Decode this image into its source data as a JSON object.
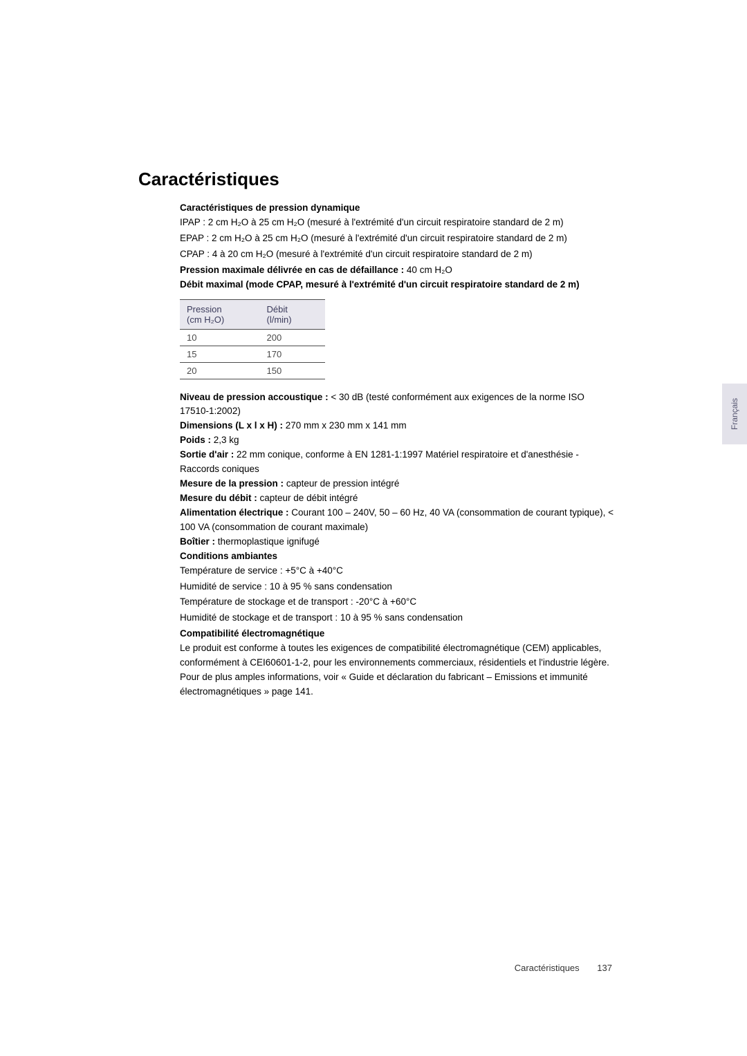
{
  "page": {
    "title": "Caractéristiques",
    "side_tab": "Français",
    "footer_label": "Caractéristiques",
    "footer_page": "137"
  },
  "dynamic_pressure": {
    "heading": "Caractéristiques de pression dynamique",
    "ipap": "IPAP : 2 cm H₂O à 25 cm H₂O (mesuré à l'extrémité d'un circuit respiratoire standard de 2 m)",
    "epap": "EPAP : 2 cm H₂O à 25 cm H₂O (mesuré à l'extrémité d'un circuit respiratoire standard de 2 m)",
    "cpap": "CPAP : 4 à 20 cm H₂O (mesuré à l'extrémité d'un circuit respiratoire standard de 2 m)"
  },
  "max_pressure": {
    "label": "Pression maximale délivrée en cas de défaillance :",
    "value": " 40 cm H₂O"
  },
  "max_flow": {
    "heading": "Débit maximal (mode CPAP, mesuré à l'extrémité d'un circuit respiratoire standard de 2 m)"
  },
  "flow_table": {
    "headers": {
      "col1_line1": "Pression",
      "col1_line2": "(cm H₂O)",
      "col2_line1": "Débit",
      "col2_line2": "(l/min)"
    },
    "rows": [
      {
        "pressure": "10",
        "flow": "200"
      },
      {
        "pressure": "15",
        "flow": "170"
      },
      {
        "pressure": "20",
        "flow": "150"
      }
    ]
  },
  "specs": {
    "acoustic_label": "Niveau de pression accoustique :",
    "acoustic_value": " < 30 dB (testé conformément aux exigences de la norme ISO 17510-1:2002)",
    "dimensions_label": "Dimensions (L x l x H) :",
    "dimensions_value": " 270 mm x 230 mm x 141 mm",
    "weight_label": "Poids :",
    "weight_value": " 2,3 kg",
    "air_outlet_label": "Sortie d'air :",
    "air_outlet_value": " 22 mm conique, conforme à EN 1281-1:1997 Matériel respiratoire et d'anesthésie - Raccords coniques",
    "pressure_measure_label": "Mesure de la pression :",
    "pressure_measure_value": " capteur de pression intégré",
    "flow_measure_label": "Mesure du débit :",
    "flow_measure_value": " capteur de débit intégré",
    "power_label": "Alimentation électrique :",
    "power_value": " Courant 100 – 240V, 50 – 60 Hz, 40 VA (consommation de courant typique), < 100 VA (consommation de courant maximale)",
    "housing_label": "Boîtier :",
    "housing_value": " thermoplastique ignifugé"
  },
  "ambient": {
    "heading": "Conditions ambiantes",
    "line1": "Température de service : +5°C à +40°C",
    "line2": "Humidité de service : 10 à 95 % sans condensation",
    "line3": "Température de stockage et de transport : -20°C à +60°C",
    "line4": "Humidité de stockage et de transport : 10 à 95 % sans condensation"
  },
  "emc": {
    "heading": "Compatibilité électromagnétique",
    "body": "Le produit est conforme à toutes les exigences de compatibilité électromagnétique (CEM) applicables, conformément à CEI60601-1-2, pour les environnements commerciaux, résidentiels et l'industrie légère. Pour de plus amples informations, voir « Guide et déclaration du fabricant – Emissions et immunité électromagnétiques » page 141."
  },
  "colors": {
    "table_header_bg": "#e8e7ee",
    "table_border": "#4a4a4a",
    "side_tab_bg": "#e3e2ea",
    "text": "#000000"
  }
}
